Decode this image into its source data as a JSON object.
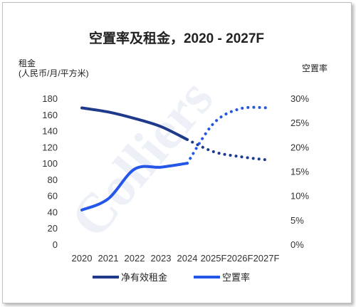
{
  "chart_data": {
    "type": "line",
    "title": "空置率及租金，2020 - 2027F",
    "watermark": "Colliers",
    "categories": [
      "2020",
      "2021",
      "2022",
      "2023",
      "2024",
      "2025F",
      "2026F",
      "2027F"
    ],
    "y_left": {
      "label_line1": "租金",
      "label_line2": "(人民币/月/平方米)",
      "range": [
        0,
        180
      ],
      "ticks": [
        "0",
        "20",
        "40",
        "60",
        "80",
        "100",
        "120",
        "140",
        "160",
        "180"
      ]
    },
    "y_right": {
      "label": "空置率",
      "range": [
        0,
        30
      ],
      "ticks": [
        "0%",
        "5%",
        "10%",
        "15%",
        "20%",
        "25%",
        "30%"
      ]
    },
    "series": [
      {
        "name": "净有效租金",
        "axis": "left",
        "color": "#1f3a8a",
        "values": [
          169,
          164,
          156,
          146,
          130,
          115,
          109,
          105
        ],
        "forecast_from_index": 4
      },
      {
        "name": "空置率",
        "axis": "right",
        "color": "#2456e8",
        "values": [
          7.2,
          9.5,
          15.6,
          16.0,
          16.8,
          25.0,
          28.0,
          28.2
        ],
        "forecast_from_index": 4
      }
    ],
    "grid": false,
    "legend_position": "bottom"
  }
}
